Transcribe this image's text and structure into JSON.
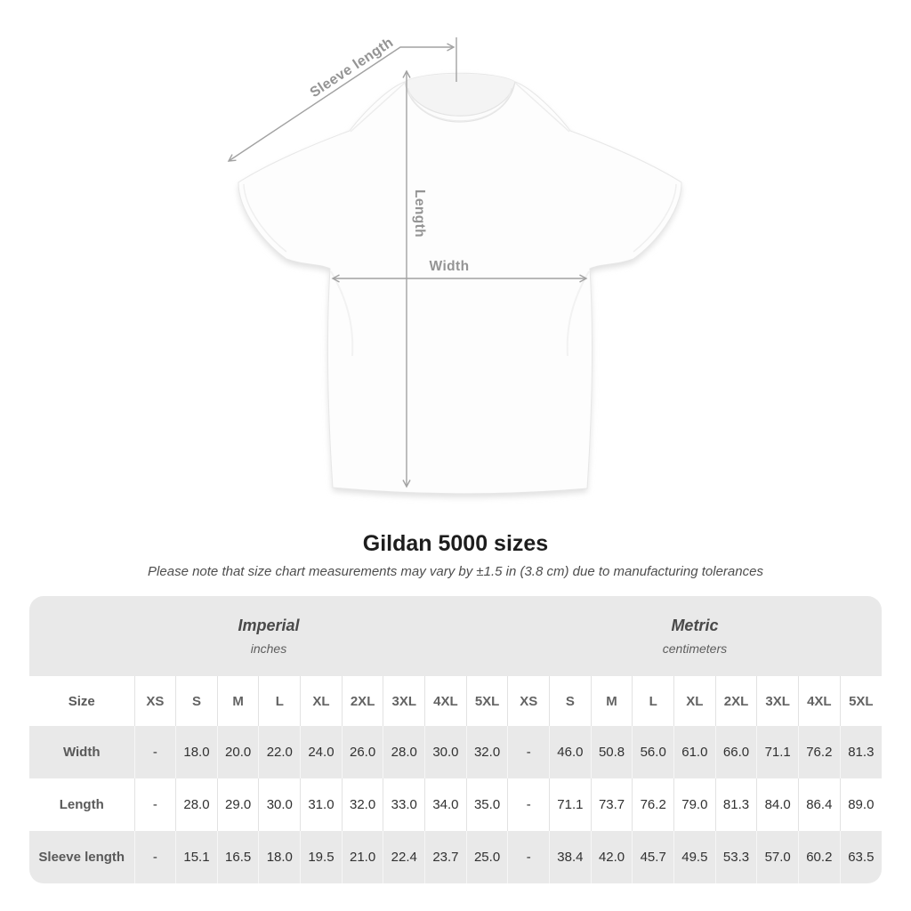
{
  "title": "Gildan 5000 sizes",
  "note": "Please note that size chart measurements may vary by ±1.5 in (3.8 cm) due to manufacturing tolerances",
  "diagram": {
    "labels": {
      "sleeve": "Sleeve length",
      "length": "Length",
      "width": "Width"
    }
  },
  "colors": {
    "annotation_gray": "#a2a2a2",
    "label_gray": "#949494",
    "band_gray": "#e9e9e9",
    "value_text": "#313131"
  },
  "chart_data": {
    "type": "table",
    "title": "Gildan 5000 sizes",
    "unit_groups": [
      {
        "name": "Imperial",
        "sub": "inches"
      },
      {
        "name": "Metric",
        "sub": "centimeters"
      }
    ],
    "size_header_label": "Size",
    "sizes": [
      "XS",
      "S",
      "M",
      "L",
      "XL",
      "2XL",
      "3XL",
      "4XL",
      "5XL"
    ],
    "rows": [
      {
        "label": "Width",
        "imperial": [
          "-",
          "18.0",
          "20.0",
          "22.0",
          "24.0",
          "26.0",
          "28.0",
          "30.0",
          "32.0"
        ],
        "metric": [
          "-",
          "46.0",
          "50.8",
          "56.0",
          "61.0",
          "66.0",
          "71.1",
          "76.2",
          "81.3"
        ]
      },
      {
        "label": "Length",
        "imperial": [
          "-",
          "28.0",
          "29.0",
          "30.0",
          "31.0",
          "32.0",
          "33.0",
          "34.0",
          "35.0"
        ],
        "metric": [
          "-",
          "71.1",
          "73.7",
          "76.2",
          "79.0",
          "81.3",
          "84.0",
          "86.4",
          "89.0"
        ]
      },
      {
        "label": "Sleeve length",
        "imperial": [
          "-",
          "15.1",
          "16.5",
          "18.0",
          "19.5",
          "21.0",
          "22.4",
          "23.7",
          "25.0"
        ],
        "metric": [
          "-",
          "38.4",
          "42.0",
          "45.7",
          "49.5",
          "53.3",
          "57.0",
          "60.2",
          "63.5"
        ]
      }
    ]
  }
}
